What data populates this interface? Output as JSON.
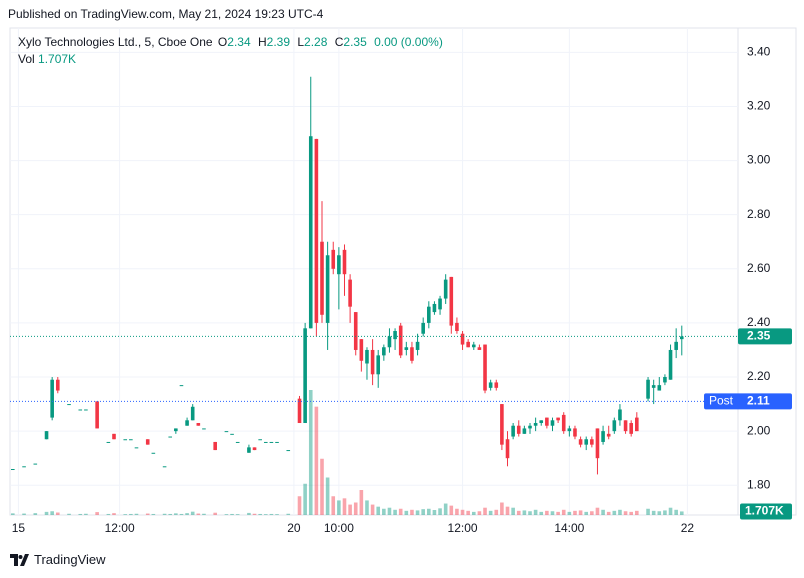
{
  "header": {
    "published": "Published on TradingView.com, May 21, 2024 19:23 UTC-4"
  },
  "legend": {
    "symbol": "Xylo Technologies Ltd., 5, Cboe One",
    "o_label": "O",
    "o": 2.34,
    "h_label": "H",
    "h": 2.39,
    "l_label": "L",
    "l": 2.28,
    "c_label": "C",
    "c": 2.35,
    "change": "0.00 (0.00%)",
    "vol_label": "Vol",
    "vol": "1.707K"
  },
  "footer": {
    "brand": "TradingView"
  },
  "chart_data": {
    "type": "candlestick",
    "up_color": "#089981",
    "down_color": "#f23645",
    "post_color": "#2962ff",
    "grid": true,
    "xlim": [
      -0.5,
      129
    ],
    "xticks": [
      {
        "value": 1,
        "label": "15"
      },
      {
        "value": 19,
        "label": "12:00"
      },
      {
        "value": 50,
        "label": "20"
      },
      {
        "value": 58,
        "label": "10:00"
      },
      {
        "value": 80,
        "label": "12:00"
      },
      {
        "value": 99,
        "label": "14:00"
      },
      {
        "value": 120,
        "label": "22"
      }
    ],
    "ylim": [
      1.69,
      3.49
    ],
    "yticks": [
      {
        "value": 1.8,
        "label": "1.80"
      },
      {
        "value": 2.0,
        "label": "2.00"
      },
      {
        "value": 2.2,
        "label": "2.20"
      },
      {
        "value": 2.4,
        "label": "2.40"
      },
      {
        "value": 2.6,
        "label": "2.60"
      },
      {
        "value": 2.8,
        "label": "2.80"
      },
      {
        "value": 3.0,
        "label": "3.00"
      },
      {
        "value": 3.2,
        "label": "3.20"
      },
      {
        "value": 3.4,
        "label": "3.40"
      }
    ],
    "last_price": 2.35,
    "post_label": "Post",
    "post_price": 2.11,
    "last_volume": {
      "value": 1707,
      "label": "1.707K"
    },
    "ohlcv": [
      [
        0,
        1.86,
        1.86,
        1.86,
        1.86,
        800
      ],
      [
        2,
        1.87,
        1.87,
        1.87,
        1.87,
        700
      ],
      [
        4,
        1.88,
        1.88,
        1.88,
        1.88,
        900
      ],
      [
        6,
        1.97,
        2.0,
        1.97,
        2.0,
        1500
      ],
      [
        7,
        2.05,
        2.2,
        2.04,
        2.19,
        1800
      ],
      [
        8,
        2.19,
        2.2,
        2.14,
        2.15,
        1200
      ],
      [
        10,
        2.1,
        2.1,
        2.1,
        2.1,
        600
      ],
      [
        12,
        2.08,
        2.08,
        2.08,
        2.08,
        500
      ],
      [
        13,
        2.08,
        2.08,
        2.08,
        2.08,
        600
      ],
      [
        15,
        2.11,
        2.11,
        2.01,
        2.01,
        1400
      ],
      [
        17,
        1.96,
        1.96,
        1.96,
        1.96,
        500
      ],
      [
        18,
        1.99,
        1.99,
        1.97,
        1.97,
        900
      ],
      [
        20,
        1.97,
        1.97,
        1.97,
        1.97,
        400
      ],
      [
        21,
        1.97,
        1.97,
        1.97,
        1.97,
        500
      ],
      [
        22,
        1.94,
        1.94,
        1.94,
        1.94,
        600
      ],
      [
        24,
        1.97,
        1.97,
        1.95,
        1.95,
        700
      ],
      [
        25,
        1.92,
        1.92,
        1.92,
        1.92,
        500
      ],
      [
        27,
        1.87,
        1.87,
        1.87,
        1.87,
        600
      ],
      [
        28,
        1.98,
        1.98,
        1.98,
        1.98,
        500
      ],
      [
        29,
        2.0,
        2.01,
        1.99,
        2.01,
        800
      ],
      [
        30,
        2.17,
        2.17,
        2.17,
        2.17,
        500
      ],
      [
        31,
        2.02,
        2.05,
        2.02,
        2.04,
        900
      ],
      [
        32,
        2.04,
        2.1,
        2.04,
        2.09,
        1600
      ],
      [
        33,
        2.03,
        2.03,
        2.02,
        2.02,
        700
      ],
      [
        34,
        2.01,
        2.01,
        2.01,
        2.01,
        600
      ],
      [
        36,
        1.96,
        1.96,
        1.93,
        1.93,
        1100
      ],
      [
        38,
        2.0,
        2.0,
        2.0,
        2.0,
        400
      ],
      [
        39,
        1.99,
        1.99,
        1.99,
        1.99,
        500
      ],
      [
        40,
        1.96,
        1.96,
        1.96,
        1.96,
        400
      ],
      [
        42,
        1.92,
        1.95,
        1.92,
        1.94,
        1000
      ],
      [
        43,
        1.94,
        1.94,
        1.93,
        1.93,
        600
      ],
      [
        44,
        1.97,
        1.97,
        1.97,
        1.97,
        500
      ],
      [
        45,
        1.96,
        1.96,
        1.96,
        1.96,
        400
      ],
      [
        46,
        1.96,
        1.96,
        1.96,
        1.96,
        500
      ],
      [
        47,
        1.96,
        1.96,
        1.96,
        1.96,
        400
      ],
      [
        49,
        1.93,
        1.93,
        1.93,
        1.93,
        600
      ],
      [
        51,
        2.12,
        2.13,
        2.03,
        2.03,
        9000
      ],
      [
        52,
        2.03,
        2.4,
        2.03,
        2.38,
        15000
      ],
      [
        53,
        2.38,
        3.31,
        2.38,
        3.09,
        60000
      ],
      [
        54,
        3.08,
        3.08,
        2.35,
        2.4,
        52000
      ],
      [
        55,
        2.7,
        2.85,
        2.4,
        2.43,
        27000
      ],
      [
        56,
        2.4,
        2.7,
        2.3,
        2.65,
        18000
      ],
      [
        57,
        2.67,
        2.7,
        2.58,
        2.6,
        9000
      ],
      [
        58,
        2.58,
        2.68,
        2.45,
        2.65,
        7000
      ],
      [
        59,
        2.67,
        2.69,
        2.5,
        2.58,
        8000
      ],
      [
        60,
        2.56,
        2.58,
        2.4,
        2.46,
        5000
      ],
      [
        61,
        2.44,
        2.44,
        2.28,
        2.3,
        6000
      ],
      [
        62,
        2.34,
        2.34,
        2.22,
        2.26,
        12000
      ],
      [
        63,
        2.25,
        2.31,
        2.19,
        2.3,
        7000
      ],
      [
        64,
        2.3,
        2.34,
        2.17,
        2.21,
        5000
      ],
      [
        65,
        2.21,
        2.3,
        2.16,
        2.28,
        4000
      ],
      [
        66,
        2.28,
        2.32,
        2.26,
        2.31,
        3000
      ],
      [
        67,
        2.31,
        2.38,
        2.29,
        2.35,
        3500
      ],
      [
        68,
        2.34,
        2.38,
        2.3,
        2.37,
        2500
      ],
      [
        69,
        2.39,
        2.4,
        2.27,
        2.28,
        3000
      ],
      [
        70,
        2.3,
        2.33,
        2.28,
        2.31,
        2000
      ],
      [
        71,
        2.31,
        2.33,
        2.25,
        2.26,
        2500
      ],
      [
        72,
        2.3,
        2.36,
        2.28,
        2.33,
        2200
      ],
      [
        73,
        2.36,
        2.42,
        2.35,
        2.4,
        2800
      ],
      [
        74,
        2.4,
        2.48,
        2.38,
        2.46,
        3000
      ],
      [
        75,
        2.44,
        2.48,
        2.43,
        2.47,
        2400
      ],
      [
        76,
        2.45,
        2.5,
        2.43,
        2.49,
        3200
      ],
      [
        77,
        2.49,
        2.58,
        2.47,
        2.56,
        5500
      ],
      [
        78,
        2.57,
        2.57,
        2.36,
        2.39,
        4500
      ],
      [
        79,
        2.4,
        2.42,
        2.36,
        2.37,
        3000
      ],
      [
        80,
        2.36,
        2.37,
        2.3,
        2.32,
        2500
      ],
      [
        81,
        2.33,
        2.34,
        2.31,
        2.31,
        2000
      ],
      [
        82,
        2.31,
        2.33,
        2.3,
        2.32,
        1500
      ],
      [
        83,
        2.31,
        2.32,
        2.3,
        2.3,
        1800
      ],
      [
        84,
        2.32,
        2.32,
        2.14,
        2.15,
        3500
      ],
      [
        85,
        2.16,
        2.19,
        2.15,
        2.18,
        2000
      ],
      [
        86,
        2.18,
        2.19,
        2.15,
        2.16,
        2500
      ],
      [
        87,
        2.1,
        2.1,
        1.93,
        1.95,
        6000
      ],
      [
        88,
        1.97,
        2.0,
        1.87,
        1.9,
        4000
      ],
      [
        89,
        1.98,
        2.03,
        1.97,
        2.02,
        3500
      ],
      [
        90,
        2.02,
        2.04,
        1.98,
        1.99,
        2000
      ],
      [
        91,
        1.99,
        2.02,
        1.99,
        2.01,
        2200
      ],
      [
        92,
        2.01,
        2.03,
        1.99,
        2.02,
        1800
      ],
      [
        93,
        2.02,
        2.05,
        2.0,
        2.03,
        2500
      ],
      [
        94,
        2.03,
        2.04,
        2.02,
        2.04,
        1500
      ],
      [
        95,
        2.05,
        2.05,
        2.01,
        2.02,
        2000
      ],
      [
        96,
        2.02,
        2.05,
        2.0,
        2.04,
        1800
      ],
      [
        97,
        2.05,
        2.05,
        2.03,
        2.04,
        1500
      ],
      [
        98,
        2.06,
        2.07,
        1.99,
        2.0,
        2500
      ],
      [
        99,
        2.0,
        2.02,
        1.98,
        2.01,
        1500
      ],
      [
        100,
        2.01,
        2.02,
        1.97,
        1.98,
        2000
      ],
      [
        101,
        1.97,
        1.98,
        1.94,
        1.95,
        2200
      ],
      [
        102,
        1.95,
        1.98,
        1.93,
        1.97,
        1500
      ],
      [
        103,
        1.97,
        1.98,
        1.94,
        1.95,
        1800
      ],
      [
        104,
        2.01,
        2.01,
        1.84,
        1.9,
        3500
      ],
      [
        105,
        1.96,
        2.02,
        1.95,
        2.0,
        2500
      ],
      [
        106,
        1.99,
        2.02,
        1.97,
        1.98,
        1500
      ],
      [
        107,
        2.0,
        2.05,
        1.99,
        2.04,
        2000
      ],
      [
        108,
        2.04,
        2.1,
        2.02,
        2.08,
        2500
      ],
      [
        109,
        2.04,
        2.04,
        1.99,
        2.0,
        1800
      ],
      [
        110,
        2.03,
        2.04,
        1.98,
        1.99,
        1500
      ],
      [
        111,
        2.05,
        2.07,
        2.0,
        2.0,
        2000
      ],
      [
        113,
        2.12,
        2.2,
        2.11,
        2.19,
        3000
      ],
      [
        114,
        2.16,
        2.19,
        2.1,
        2.17,
        2000
      ],
      [
        115,
        2.15,
        2.2,
        2.15,
        2.17,
        1800
      ],
      [
        116,
        2.18,
        2.21,
        2.17,
        2.2,
        2200
      ],
      [
        117,
        2.19,
        2.32,
        2.19,
        2.3,
        3500
      ],
      [
        118,
        2.3,
        2.38,
        2.27,
        2.33,
        2500
      ],
      [
        119,
        2.34,
        2.39,
        2.28,
        2.35,
        1707
      ]
    ]
  }
}
